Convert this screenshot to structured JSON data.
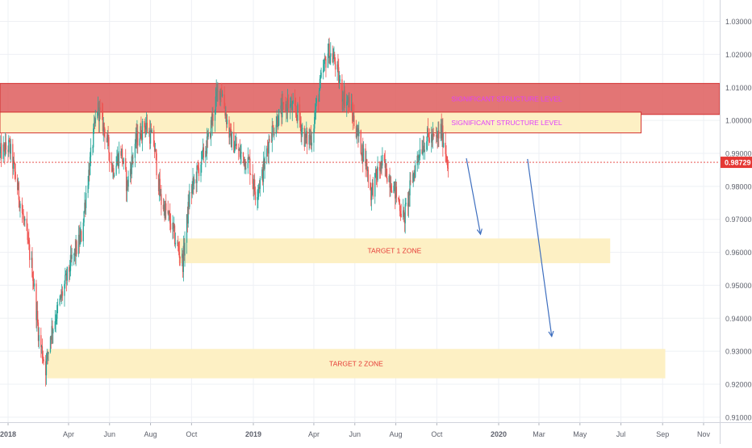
{
  "chart_data": {
    "type": "candlestick",
    "title": "",
    "xlabel": "",
    "ylabel": "",
    "grid": true,
    "x_axis": {
      "range": [
        "2017-12-20",
        "2020-11-25"
      ],
      "ticks": [
        {
          "date": "2018-01-01",
          "label": "2018",
          "major": true
        },
        {
          "date": "2018-04-01",
          "label": "Apr"
        },
        {
          "date": "2018-06-01",
          "label": "Jun"
        },
        {
          "date": "2018-08-01",
          "label": "Aug"
        },
        {
          "date": "2018-10-01",
          "label": "Oct"
        },
        {
          "date": "2019-01-01",
          "label": "2019",
          "major": true
        },
        {
          "date": "2019-04-01",
          "label": "Apr"
        },
        {
          "date": "2019-06-01",
          "label": "Jun"
        },
        {
          "date": "2019-08-01",
          "label": "Aug"
        },
        {
          "date": "2019-10-01",
          "label": "Oct"
        },
        {
          "date": "2020-01-01",
          "label": "2020",
          "major": true
        },
        {
          "date": "2020-03-01",
          "label": "Mar"
        },
        {
          "date": "2020-05-01",
          "label": "May"
        },
        {
          "date": "2020-07-01",
          "label": "Jul"
        },
        {
          "date": "2020-09-01",
          "label": "Sep"
        },
        {
          "date": "2020-11-01",
          "label": "Nov"
        }
      ]
    },
    "y_axis": {
      "range": [
        0.9085,
        1.0365
      ],
      "ticks": [
        "0.91000",
        "0.92000",
        "0.93000",
        "0.94000",
        "0.95000",
        "0.96000",
        "0.97000",
        "0.98000",
        "0.99000",
        "1.00000",
        "1.01000",
        "1.02000",
        "1.03000"
      ]
    },
    "last_price": {
      "value": 0.98729,
      "label": "0.98729",
      "color": "#e53935"
    },
    "colors": {
      "up": "#26a69a",
      "down": "#ef5350",
      "grid": "#eef0f4",
      "axis_text": "#5d606b"
    },
    "price_path": [
      [
        "2017-12-20",
        0.99
      ],
      [
        "2018-01-03",
        0.992
      ],
      [
        "2018-01-10",
        0.985
      ],
      [
        "2018-01-22",
        0.972
      ],
      [
        "2018-02-06",
        0.955
      ],
      [
        "2018-02-16",
        0.934
      ],
      [
        "2018-02-26",
        0.925
      ],
      [
        "2018-03-05",
        0.935
      ],
      [
        "2018-03-22",
        0.947
      ],
      [
        "2018-04-05",
        0.957
      ],
      [
        "2018-04-20",
        0.965
      ],
      [
        "2018-04-27",
        0.978
      ],
      [
        "2018-05-08",
        0.995
      ],
      [
        "2018-05-14",
        1.004
      ],
      [
        "2018-05-25",
        0.997
      ],
      [
        "2018-06-06",
        0.985
      ],
      [
        "2018-06-18",
        0.991
      ],
      [
        "2018-06-27",
        0.98
      ],
      [
        "2018-07-09",
        0.993
      ],
      [
        "2018-07-24",
        0.999
      ],
      [
        "2018-08-06",
        0.993
      ],
      [
        "2018-08-16",
        0.976
      ],
      [
        "2018-08-29",
        0.97
      ],
      [
        "2018-09-11",
        0.961
      ],
      [
        "2018-09-18",
        0.957
      ],
      [
        "2018-09-28",
        0.977
      ],
      [
        "2018-10-11",
        0.985
      ],
      [
        "2018-10-26",
        0.994
      ],
      [
        "2018-11-07",
        1.007
      ],
      [
        "2018-11-14",
        1.01
      ],
      [
        "2018-11-27",
        0.995
      ],
      [
        "2018-12-11",
        0.99
      ],
      [
        "2018-12-26",
        0.987
      ],
      [
        "2019-01-04",
        0.978
      ],
      [
        "2019-01-14",
        0.983
      ],
      [
        "2019-01-25",
        0.995
      ],
      [
        "2019-02-07",
        1.001
      ],
      [
        "2019-02-21",
        1.005
      ],
      [
        "2019-03-08",
        1.002
      ],
      [
        "2019-03-19",
        0.994
      ],
      [
        "2019-03-29",
        0.995
      ],
      [
        "2019-04-05",
        1.005
      ],
      [
        "2019-04-15",
        1.015
      ],
      [
        "2019-04-22",
        1.021
      ],
      [
        "2019-05-02",
        1.018
      ],
      [
        "2019-05-13",
        1.008
      ],
      [
        "2019-05-24",
        1.005
      ],
      [
        "2019-06-06",
        0.995
      ],
      [
        "2019-06-18",
        0.987
      ],
      [
        "2019-06-25",
        0.978
      ],
      [
        "2019-07-03",
        0.983
      ],
      [
        "2019-07-12",
        0.987
      ],
      [
        "2019-07-24",
        0.982
      ],
      [
        "2019-08-06",
        0.975
      ],
      [
        "2019-08-13",
        0.97
      ],
      [
        "2019-08-23",
        0.98
      ],
      [
        "2019-09-05",
        0.991
      ],
      [
        "2019-09-18",
        0.995
      ],
      [
        "2019-09-30",
        0.994
      ],
      [
        "2019-10-07",
        0.997
      ],
      [
        "2019-10-11",
        0.994
      ],
      [
        "2019-10-16",
        0.989
      ],
      [
        "2019-10-18",
        0.987
      ]
    ],
    "annotations": [
      {
        "type": "zone",
        "kind": "resistance",
        "label": "SIGNIFICANT STRUCTURE LEVEL",
        "y_top": 1.0112,
        "y_bottom": 1.0018,
        "x_start": "2017-12-20",
        "x_end": "2020-11-25",
        "fill": "#e06666",
        "stroke": "#d32f2f",
        "text_color": "#e040fb"
      },
      {
        "type": "zone",
        "kind": "support",
        "label": "SIGNIFICANT STRUCTURE LEVEL",
        "y_top": 1.0025,
        "y_bottom": 0.9962,
        "x_start": "2017-12-20",
        "x_end": "2020-07-31",
        "fill": "#fdf0c4",
        "stroke": "#d32f2f",
        "text_color": "#e040fb"
      },
      {
        "type": "zone",
        "kind": "target",
        "label": "TARGET 1 ZONE",
        "y_top": 0.9642,
        "y_bottom": 0.9567,
        "x_start": "2018-09-12",
        "x_end": "2020-06-15",
        "fill": "#fdf0c4",
        "stroke": "none",
        "text_color": "#e53935"
      },
      {
        "type": "zone",
        "kind": "target",
        "label": "TARGET 2 ZONE",
        "y_top": 0.9307,
        "y_bottom": 0.9218,
        "x_start": "2018-02-28",
        "x_end": "2020-09-05",
        "fill": "#fdf0c4",
        "stroke": "none",
        "text_color": "#e53935"
      },
      {
        "type": "arrow",
        "color": "#3f6fbf",
        "from": [
          "2019-11-14",
          0.9885
        ],
        "to": [
          "2019-12-05",
          0.9655
        ]
      },
      {
        "type": "arrow",
        "color": "#3f6fbf",
        "from": [
          "2020-02-13",
          0.9883
        ],
        "to": [
          "2020-03-20",
          0.9345
        ]
      }
    ]
  }
}
